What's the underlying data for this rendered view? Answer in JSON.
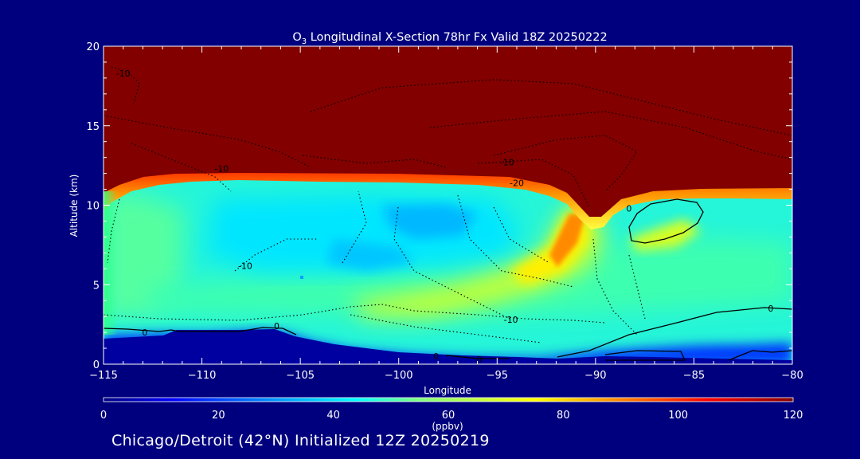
{
  "chart_data": {
    "type": "heatmap",
    "title_prefix": "O",
    "title_subscript": "3",
    "title_rest": " Longitudinal X-Section 78hr  Fx Valid 18Z 20250222",
    "xlabel": "Longitude",
    "ylabel": "Altitude (km)",
    "xlim": [
      -115,
      -80
    ],
    "ylim": [
      0,
      20
    ],
    "x_ticks": [
      -115,
      -110,
      -105,
      -100,
      -95,
      -90,
      -85,
      -80
    ],
    "x_tick_labels": [
      "−115",
      "−110",
      "−105",
      "−100",
      "−95",
      "−90",
      "−85",
      "−80"
    ],
    "y_ticks": [
      0,
      5,
      10,
      15,
      20
    ],
    "y_tick_labels": [
      "0",
      "5",
      "10",
      "15",
      "20"
    ],
    "colorbar": {
      "label": "(ppbv)",
      "range": [
        0,
        120
      ],
      "ticks": [
        0,
        20,
        40,
        60,
        80,
        100,
        120
      ],
      "tick_labels": [
        "0",
        "20",
        "40",
        "60",
        "80",
        "100",
        "120"
      ],
      "stops": [
        {
          "v": 0,
          "color": "#00007e"
        },
        {
          "v": 12,
          "color": "#0000ff"
        },
        {
          "v": 30,
          "color": "#0096ff"
        },
        {
          "v": 44,
          "color": "#00ffff"
        },
        {
          "v": 55,
          "color": "#7fff7f"
        },
        {
          "v": 75,
          "color": "#ffff00"
        },
        {
          "v": 95,
          "color": "#ff5a00"
        },
        {
          "v": 105,
          "color": "#ff0000"
        },
        {
          "v": 120,
          "color": "#820000"
        }
      ]
    },
    "field_description": "ozone mixing ratio cross-section; stratospheric values above ~11 km west of -90 and ~10.5 km east; tropopause fold near -91 to -89",
    "contour_levels": [
      0,
      -10,
      -20
    ],
    "contour_labels": [
      {
        "lon": -114,
        "alt": 18.3,
        "text": "-10"
      },
      {
        "lon": -109,
        "alt": 12.3,
        "text": "-10"
      },
      {
        "lon": -107.8,
        "alt": 6.2,
        "text": "-10"
      },
      {
        "lon": -94.5,
        "alt": 12.7,
        "text": "-10"
      },
      {
        "lon": -94,
        "alt": 11.4,
        "text": "-20"
      },
      {
        "lon": -94.3,
        "alt": 2.8,
        "text": "-10"
      },
      {
        "lon": -112.9,
        "alt": 2.0,
        "text": "0"
      },
      {
        "lon": -106.2,
        "alt": 2.4,
        "text": "0"
      },
      {
        "lon": -98.1,
        "alt": 0.5,
        "text": "0"
      },
      {
        "lon": -95.9,
        "alt": 0.3,
        "text": "0"
      },
      {
        "lon": -88.3,
        "alt": 9.8,
        "text": "0"
      },
      {
        "lon": -81.1,
        "alt": 3.5,
        "text": "0"
      }
    ]
  },
  "footer": {
    "caption": "Chicago/Detroit (42°N) Initialized 12Z 20250219"
  }
}
